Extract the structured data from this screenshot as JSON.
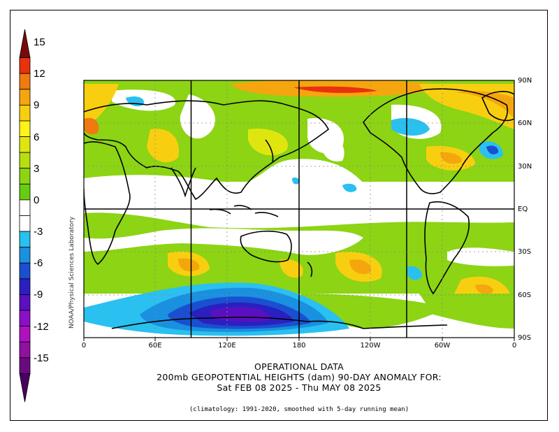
{
  "title_lines": [
    "OPERATIONAL DATA",
    "200mb GEOPOTENTIAL HEIGHTS (dam)   90-DAY ANOMALY FOR:",
    "Sat FEB 08 2025 - Thu MAY 08 2025"
  ],
  "climatology_note": "(climatology: 1991-2020, smoothed with 5-day running mean)",
  "credit": "NOAA/Physical Sciences Laboratory",
  "colorbar": {
    "tick_labels": [
      "15",
      "12",
      "9",
      "6",
      "3",
      "0",
      "-3",
      "-6",
      "-9",
      "-12",
      "-15"
    ],
    "colors": [
      "#7a0a0a",
      "#e8320e",
      "#f07a10",
      "#f5a60f",
      "#f8cf10",
      "#fff21a",
      "#dfe60f",
      "#b8de12",
      "#8cd414",
      "#68cc10",
      "#ffffff",
      "#ffffff",
      "#2ac0f0",
      "#1a90e0",
      "#1a50d0",
      "#2a20c0",
      "#5a10c0",
      "#8a10c8",
      "#b010c0",
      "#9010a0",
      "#6a0a80",
      "#4a0060"
    ]
  },
  "map": {
    "lat_labels": [
      "90N",
      "60N",
      "30N",
      "EQ",
      "30S",
      "60S",
      "90S"
    ],
    "lon_labels": [
      "0",
      "60E",
      "120E",
      "180",
      "120W",
      "60W",
      "0"
    ],
    "projection": "cylindrical equidistant",
    "field": "200mb geopotential height anomaly (dam)"
  }
}
